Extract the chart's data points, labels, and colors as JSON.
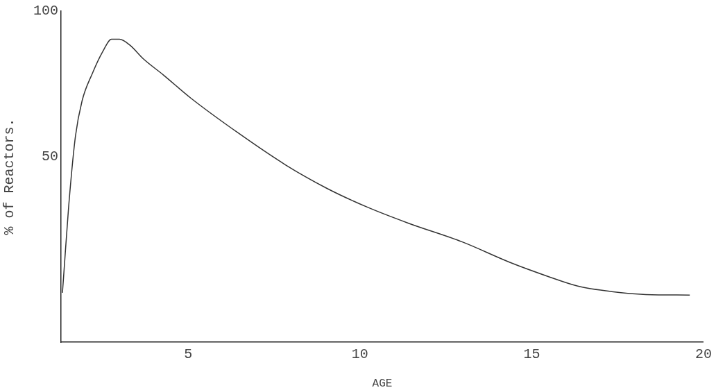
{
  "chart_data": {
    "type": "line",
    "xlabel": "AGE",
    "ylabel": "% of Reactors.",
    "x": [
      1.34,
      1.38,
      1.52,
      1.72,
      1.91,
      2.21,
      2.51,
      2.77,
      3.0,
      3.3,
      3.7,
      4.28,
      5.08,
      6.46,
      7.84,
      9.03,
      10.21,
      11.4,
      12.98,
      14.36,
      15.55,
      16.34,
      17.33,
      18.32,
      19.6
    ],
    "series": [
      {
        "color": "#333333",
        "values": [
          3,
          9.5,
          32.5,
          57,
          69,
          78.5,
          86,
          90.3,
          90.3,
          88.3,
          83.5,
          78,
          70,
          58,
          47,
          39,
          32.5,
          27,
          20.5,
          13.5,
          8.3,
          5.3,
          3.4,
          2.4,
          2.2
        ]
      }
    ],
    "xlim": [
      1.3,
      20
    ],
    "xticks": [
      5,
      10,
      15,
      20
    ],
    "ylim": [
      -14,
      100
    ],
    "yticks": [
      50,
      100
    ],
    "grid": false,
    "legend": false,
    "marker": "none",
    "line_style": "solid"
  }
}
